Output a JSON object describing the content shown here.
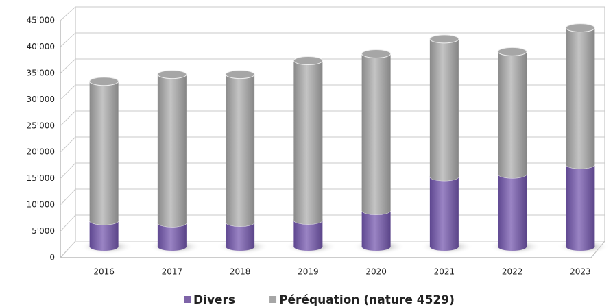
{
  "chart_data": {
    "type": "bar",
    "stacked": true,
    "categories": [
      "2016",
      "2017",
      "2018",
      "2019",
      "2020",
      "2021",
      "2022",
      "2023"
    ],
    "series": [
      {
        "name": "Divers",
        "color": "#7e64a8",
        "values": [
          4900,
          4500,
          4600,
          5000,
          6800,
          13200,
          13700,
          15500
        ]
      },
      {
        "name": "Péréquation (nature 4529)",
        "color": "#a6a6a6",
        "values": [
          26300,
          28000,
          27900,
          30100,
          29600,
          26000,
          23100,
          25800
        ]
      }
    ],
    "ylim": [
      0,
      45000
    ],
    "yticks": [
      0,
      {
        "value": 5000,
        "label": "5'000"
      },
      {
        "value": 10000,
        "label": "10'000"
      },
      {
        "value": 15000,
        "label": "15'000"
      },
      {
        "value": 20000,
        "label": "20'000"
      },
      {
        "value": 25000,
        "label": "25'000"
      },
      {
        "value": 30000,
        "label": "30'000"
      },
      {
        "value": 35000,
        "label": "35'000"
      },
      {
        "value": 40000,
        "label": "40'000"
      },
      {
        "value": 45000,
        "label": "45'000"
      }
    ],
    "grid": true,
    "legend": "bottom"
  }
}
